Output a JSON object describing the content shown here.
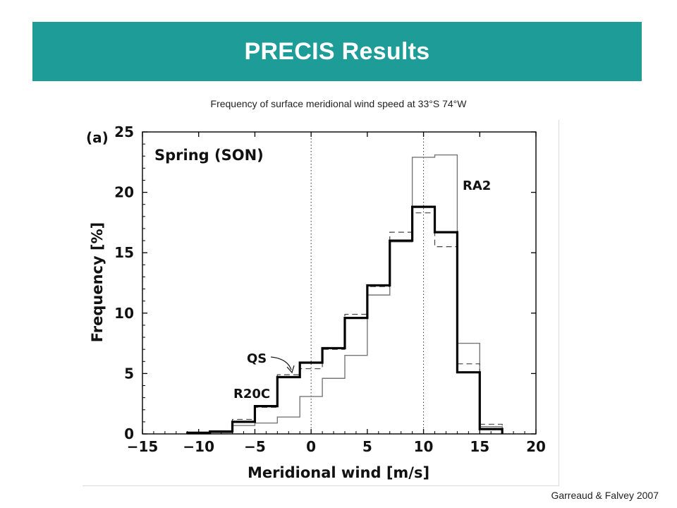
{
  "header": {
    "title": "PRECIS Results"
  },
  "subtitle": "Frequency of surface meridional wind speed at 33°S 74°W",
  "credit": "Garreaud & Falvey 2007",
  "chart_data": {
    "type": "histogram",
    "panel_label": "(a)",
    "inset_title": "Spring (SON)",
    "xlabel": "Meridional wind [m/s]",
    "ylabel": "Frequency [%]",
    "xlim": [
      -15,
      20
    ],
    "ylim": [
      0,
      25
    ],
    "xticks": [
      -15,
      -10,
      -5,
      0,
      5,
      10,
      15,
      20
    ],
    "yticks": [
      0,
      5,
      10,
      15,
      20,
      25
    ],
    "vlines": [
      0,
      10
    ],
    "bin_edges": [
      -11,
      -9,
      -7,
      -5,
      -3,
      -1,
      1,
      3,
      5,
      7,
      9,
      11,
      13,
      15,
      17
    ],
    "series": [
      {
        "name": "R20C",
        "style": "thick",
        "values": [
          0.1,
          0.2,
          1.0,
          2.3,
          4.7,
          5.9,
          7.1,
          9.6,
          12.3,
          16.0,
          18.8,
          16.7,
          5.1,
          0.4
        ]
      },
      {
        "name": "QS",
        "style": "dashed",
        "values": [
          0.1,
          0.2,
          1.2,
          2.2,
          4.9,
          5.4,
          7.0,
          9.9,
          12.2,
          16.7,
          18.3,
          15.5,
          5.8,
          0.8
        ]
      },
      {
        "name": "RA2",
        "style": "thin",
        "values": [
          0.0,
          0.1,
          0.7,
          0.9,
          1.4,
          3.1,
          4.6,
          6.5,
          11.5,
          15.9,
          22.9,
          23.1,
          7.5,
          0.6
        ]
      }
    ],
    "annotations": [
      "QS",
      "R20C",
      "RA2"
    ],
    "colors": {
      "thick": "#000000",
      "dashed": "#444444",
      "thin": "#777777"
    }
  }
}
